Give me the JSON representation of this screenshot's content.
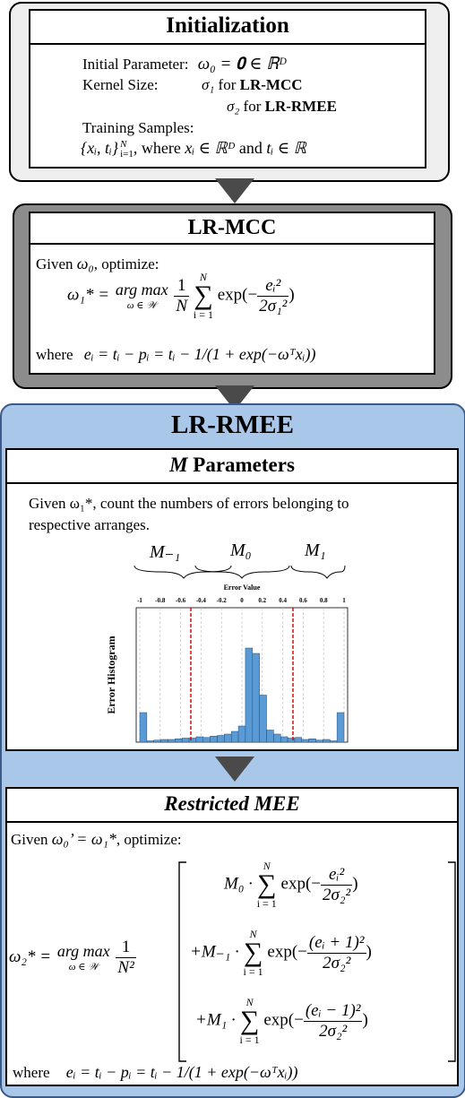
{
  "init": {
    "title": "Initialization",
    "param_label": "Initial Parameter:",
    "param_expr": "ω₀ = 𝟎 ∈ ℝᴰ",
    "kernel_label": "Kernel Size:",
    "kernel1_sym": "σ₁",
    "kernel1_for": "for",
    "kernel1_method": "LR-MCC",
    "kernel2_sym": "σ₂",
    "kernel2_for": "for",
    "kernel2_method": "LR-RMEE",
    "samples_label": "Training Samples:",
    "samples_set": "{xᵢ, tᵢ}",
    "samples_range": "N",
    "samples_idx": "i=1",
    "samples_where": ", where",
    "samples_x": "xᵢ ∈ ℝᴰ",
    "samples_and": "and",
    "samples_t": "tᵢ ∈ ℝ"
  },
  "mcc": {
    "title": "LR-MCC",
    "given": "Given",
    "given_sym": "ω₀",
    "given_rest": ", optimize:",
    "lhs": "ω₁* =",
    "argmax": "arg max",
    "argmax_sub": "ω ∈ 𝒲",
    "frac_num": "1",
    "frac_den": "N",
    "sum_top": "N",
    "sum_bot": "i = 1",
    "exp_term": "exp(−",
    "exp_num": "eᵢ²",
    "exp_den": "2σ₁²",
    "exp_close": ")",
    "where": "where",
    "where_expr": "eᵢ = tᵢ − pᵢ = tᵢ − 1/(1 + exp(−ωᵀxᵢ))"
  },
  "rmee": {
    "title": "LR-RMEE",
    "mparams_title_italic": "M",
    "mparams_title_rest": "Parameters",
    "mparams_desc1": "Given ω₁*, count the numbers of errors belonging to",
    "mparams_desc2": "respective arranges.",
    "m_labels": [
      "M₋₁",
      "M₀",
      "M₁"
    ],
    "restricted_title": "Restricted MEE",
    "given": "Given",
    "given_expr": "ω₀’ = ω₁*",
    "given_rest": ", optimize:",
    "lhs": "ω₂* =",
    "argmax": "arg max",
    "argmax_sub": "ω ∈ 𝒲",
    "frac_num": "1",
    "frac_den": "N²",
    "sum_top": "N",
    "sum_bot": "i = 1",
    "term1_coef": "M₀ ·",
    "term1_num": "eᵢ²",
    "term2_coef": "+M₋₁ ·",
    "term2_num": "(eᵢ + 1)²",
    "term3_coef": "+M₁ ·",
    "term3_num": "(eᵢ − 1)²",
    "exp_open": "exp(−",
    "exp_close": ")",
    "exp_den": "2σ₂²",
    "where": "where",
    "where_expr": "eᵢ = tᵢ − pᵢ = tᵢ − 1/(1 + exp(−ωᵀxᵢ))"
  },
  "chart_data": {
    "type": "bar",
    "title": "Error Value",
    "ylabel": "Error Histogram",
    "xlim": [
      -1,
      1
    ],
    "x_ticks": [
      "-1",
      "-0.8",
      "-0.6",
      "-0.4",
      "-0.2",
      "0",
      "0.2",
      "0.4",
      "0.6",
      "0.8",
      "1"
    ],
    "thresholds": [
      -0.5,
      0.5
    ],
    "values": [
      0.22,
      0.01,
      0.015,
      0.02,
      0.02,
      0.025,
      0.03,
      0.03,
      0.04,
      0.035,
      0.045,
      0.05,
      0.06,
      0.08,
      0.12,
      0.7,
      0.66,
      0.35,
      0.09,
      0.06,
      0.04,
      0.03,
      0.035,
      0.02,
      0.025,
      0.015,
      0.02,
      0.01,
      0.22
    ],
    "colors": {
      "bar": "#5b9bd5",
      "threshold": "#d10000",
      "grid": "#bbbbbb"
    }
  }
}
